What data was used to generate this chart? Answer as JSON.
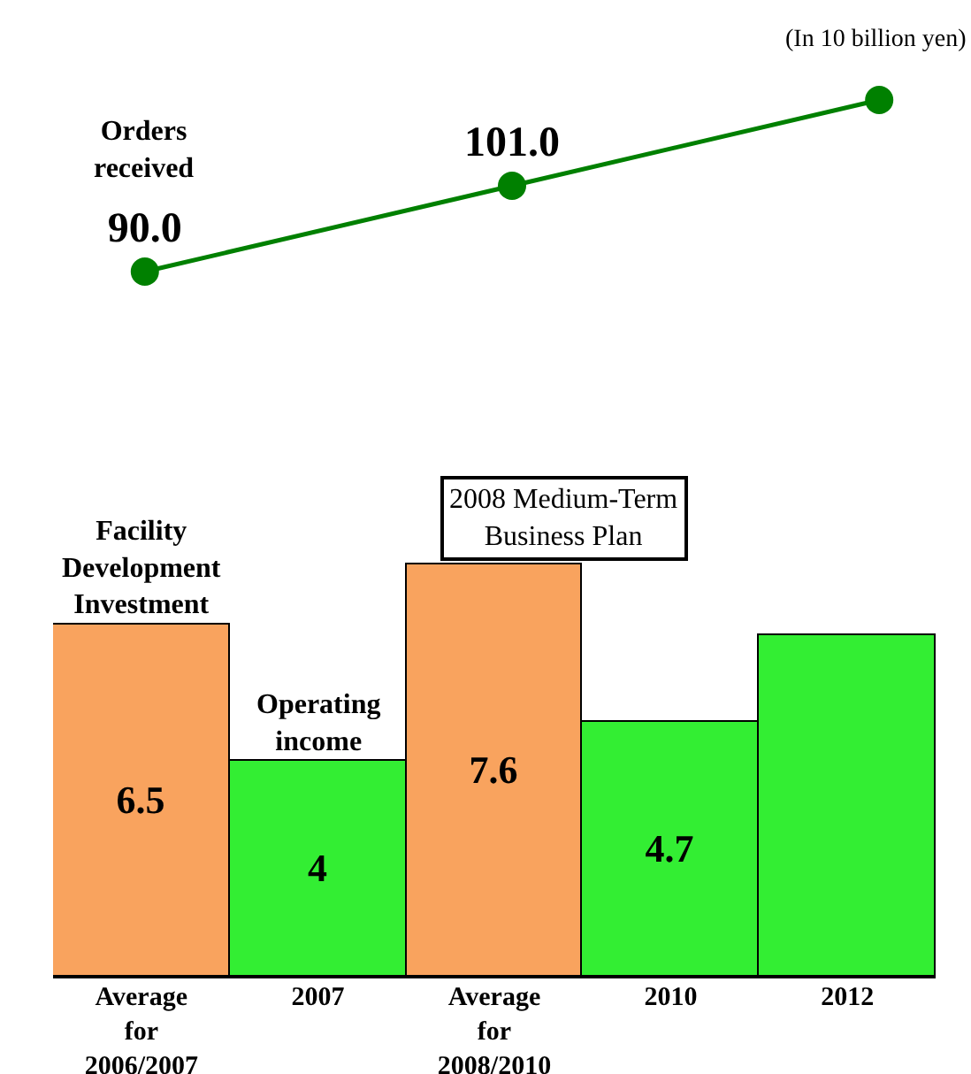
{
  "chart_data": [
    {
      "type": "line",
      "categories": [
        null,
        null,
        null
      ],
      "series": [
        {
          "name": "Orders received",
          "color": "#008000",
          "values": [
            90.0,
            101.0,
            112.0
          ],
          "value_labels": [
            "90.0",
            "101.0",
            null
          ]
        }
      ],
      "annotations": [
        "(In 10 billion yen)"
      ],
      "marker": "circle",
      "line_style": "solid",
      "legend": false,
      "grid": false,
      "tick_labels": false
    },
    {
      "type": "bar",
      "categories": [
        "Average for 2006/2007",
        "2007",
        "Average for 2008/2010",
        "2010",
        "2012"
      ],
      "series": [
        {
          "name": "Facility Development Investment",
          "type": "bar",
          "color": "#f9a35e",
          "values": [
            6.5,
            null,
            7.6,
            null,
            null
          ],
          "value_labels": [
            "6.5",
            null,
            "7.6",
            null,
            null
          ]
        },
        {
          "name": "Operating income",
          "type": "bar",
          "color": "#33ee33",
          "values": [
            null,
            4,
            null,
            4.7,
            6.3
          ],
          "value_labels": [
            null,
            "4",
            null,
            "4.7",
            null
          ]
        }
      ],
      "annotations": [
        "2008 Medium-Term Business Plan"
      ],
      "legend": false,
      "grid": false,
      "tick_labels": "x"
    }
  ]
}
